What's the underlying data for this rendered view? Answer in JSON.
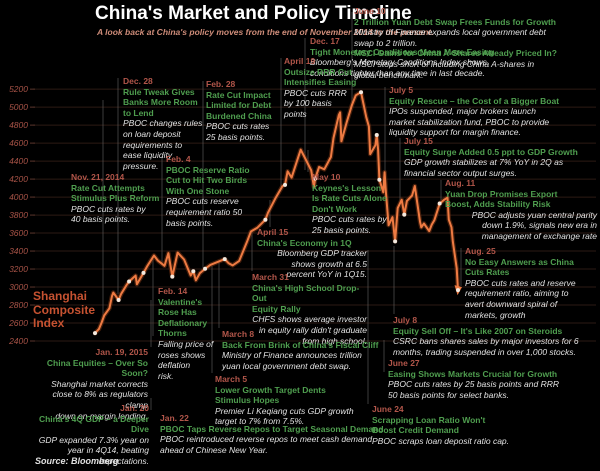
{
  "title": "China's Market and Policy Timeline",
  "subtitle": "A look back at China's policy moves from the end of November 2014 to the present.",
  "source": "Source: Bloomberg",
  "series_label": "Shanghai\nComposite\nIndex",
  "colors": {
    "background": "#000000",
    "line": "#ee7b43",
    "marker": "#f2e9df",
    "date_text": "#b2564a",
    "headline_text": "#4f9e4f",
    "body_text": "#e2e2e2",
    "subtitle_text": "#cf8d7a",
    "axis_label": "#a85347",
    "gridline": "#2c1a13",
    "connector": "#6b6b6b",
    "series_label_text": "#c65231"
  },
  "chart_data": {
    "type": "line",
    "title": "Shanghai Composite Index",
    "xlabel": "",
    "ylabel": "",
    "ylim": [
      2400,
      5200
    ],
    "y_ticks": [
      5200,
      5000,
      4800,
      4600,
      4400,
      4200,
      4000,
      3800,
      3600,
      3400,
      3200,
      3000,
      2800,
      2600,
      2400
    ],
    "x_range": [
      "2014-11-21",
      "2015-08-25"
    ],
    "grid": "horizontal",
    "legend_position": "none",
    "points": [
      [
        "2014-11-21",
        2487
      ],
      [
        "2014-11-24",
        2532
      ],
      [
        "2014-11-26",
        2604
      ],
      [
        "2014-11-28",
        2683
      ],
      [
        "2014-12-02",
        2763
      ],
      [
        "2014-12-04",
        2899
      ],
      [
        "2014-12-05",
        2938
      ],
      [
        "2014-12-09",
        2856
      ],
      [
        "2014-12-11",
        2925
      ],
      [
        "2014-12-15",
        3021
      ],
      [
        "2014-12-17",
        3061
      ],
      [
        "2014-12-22",
        3127
      ],
      [
        "2014-12-23",
        3032
      ],
      [
        "2014-12-28",
        3157
      ],
      [
        "2014-12-31",
        3235
      ],
      [
        "2015-01-05",
        3351
      ],
      [
        "2015-01-08",
        3294
      ],
      [
        "2015-01-13",
        3236
      ],
      [
        "2015-01-16",
        3376
      ],
      [
        "2015-01-19",
        3116
      ],
      [
        "2015-01-23",
        3383
      ],
      [
        "2015-01-28",
        3306
      ],
      [
        "2015-02-02",
        3128
      ],
      [
        "2015-02-04",
        3175
      ],
      [
        "2015-02-06",
        3075
      ],
      [
        "2015-02-09",
        3153
      ],
      [
        "2015-02-13",
        3203
      ],
      [
        "2015-02-17",
        3246
      ],
      [
        "2015-02-28",
        3310
      ],
      [
        "2015-03-03",
        3264
      ],
      [
        "2015-03-06",
        3241
      ],
      [
        "2015-03-11",
        3291
      ],
      [
        "2015-03-17",
        3503
      ],
      [
        "2015-03-20",
        3617
      ],
      [
        "2015-03-25",
        3661
      ],
      [
        "2015-03-31",
        3748
      ],
      [
        "2015-04-02",
        3826
      ],
      [
        "2015-04-08",
        3994
      ],
      [
        "2015-04-13",
        4121
      ],
      [
        "2015-04-15",
        4136
      ],
      [
        "2015-04-17",
        4287
      ],
      [
        "2015-04-20",
        4217
      ],
      [
        "2015-04-24",
        4394
      ],
      [
        "2015-04-27",
        4527
      ],
      [
        "2015-04-30",
        4441
      ],
      [
        "2015-05-05",
        4298
      ],
      [
        "2015-05-07",
        4112
      ],
      [
        "2015-05-08",
        4206
      ],
      [
        "2015-05-11",
        4334
      ],
      [
        "2015-05-15",
        4309
      ],
      [
        "2015-05-20",
        4446
      ],
      [
        "2015-05-22",
        4657
      ],
      [
        "2015-05-26",
        4910
      ],
      [
        "2015-05-27",
        4941
      ],
      [
        "2015-05-28",
        4620
      ],
      [
        "2015-06-01",
        4828
      ],
      [
        "2015-06-05",
        5023
      ],
      [
        "2015-06-08",
        5132
      ],
      [
        "2015-06-12",
        5166
      ],
      [
        "2015-06-16",
        4887
      ],
      [
        "2015-06-18",
        4785
      ],
      [
        "2015-06-19",
        4478
      ],
      [
        "2015-06-23",
        4576
      ],
      [
        "2015-06-24",
        4690
      ],
      [
        "2015-06-25",
        4527
      ],
      [
        "2015-06-26",
        4193
      ],
      [
        "2015-06-29",
        4053
      ],
      [
        "2015-06-30",
        4277
      ],
      [
        "2015-07-01",
        4054
      ],
      [
        "2015-07-03",
        3687
      ],
      [
        "2015-07-06",
        3776
      ],
      [
        "2015-07-08",
        3507
      ],
      [
        "2015-07-10",
        3877
      ],
      [
        "2015-07-13",
        3970
      ],
      [
        "2015-07-15",
        3805
      ],
      [
        "2015-07-17",
        3957
      ],
      [
        "2015-07-21",
        4018
      ],
      [
        "2015-07-23",
        4123
      ],
      [
        "2015-07-27",
        3726
      ],
      [
        "2015-07-28",
        3663
      ],
      [
        "2015-07-30",
        3706
      ],
      [
        "2015-08-03",
        3622
      ],
      [
        "2015-08-05",
        3695
      ],
      [
        "2015-08-07",
        3744
      ],
      [
        "2015-08-11",
        3928
      ],
      [
        "2015-08-14",
        3965
      ],
      [
        "2015-08-17",
        3994
      ],
      [
        "2015-08-18",
        3748
      ],
      [
        "2015-08-20",
        3664
      ],
      [
        "2015-08-21",
        3508
      ],
      [
        "2015-08-24",
        3210
      ],
      [
        "2015-08-25",
        2965
      ]
    ],
    "marker_dates": [
      "2014-11-21",
      "2014-12-09",
      "2014-12-17",
      "2014-12-28",
      "2015-01-19",
      "2015-02-04",
      "2015-02-13",
      "2015-02-28",
      "2015-03-31",
      "2015-04-15",
      "2015-05-08",
      "2015-06-12",
      "2015-06-24",
      "2015-06-26",
      "2015-07-08",
      "2015-07-15",
      "2015-08-11",
      "2015-08-25"
    ]
  },
  "annotations": [
    {
      "id": "nov21",
      "date": "Nov. 21, 2014",
      "head": "Rate Cut Attempts\nStimulus Plus Reform",
      "body": "PBOC cuts rates by\n40 basis points."
    },
    {
      "id": "dec28",
      "date": "Dec. 28",
      "head": "Rule Tweak Gives\nBanks More Room\nto Lend",
      "body": "PBOC changes rules\non loan deposit\nrequirements to\nease liquidity\npressure."
    },
    {
      "id": "feb4",
      "date": "Feb. 4",
      "head": "PBOC Reserve Ratio\nCut to Hit Two Birds\nWith One Stone",
      "body": "PBOC cuts reserve\nrequirement ratio 50\nbasis points."
    },
    {
      "id": "feb28",
      "date": "Feb. 28",
      "head": "Rate Cut Impact\nLimited for Debt\nBurdened China",
      "body": "PBOC cuts rates\n25 basis points."
    },
    {
      "id": "dec17",
      "date": "Dec. 17",
      "head": "Tight Monetary Conditions Mean More Easing",
      "body": "Bloomberg's Monetary Conditions Index shows\nconditions tighter than any time in last decade."
    },
    {
      "id": "apr19",
      "date": "April 19",
      "head": "Outsize RRR Cut\nIntensifies Easing",
      "body": "PBOC cuts RRR\nby 100 basis\npoints"
    },
    {
      "id": "jun10",
      "date": "June 10",
      "head": "2 Trillion Yuan Debt Swap Frees Funds for Growth",
      "body": "Ministry of Finance expands local government debt\nswap to 2 trillion.",
      "head2": "MSCI Gains for China A-Shares Already Priced In?",
      "body2": "MSCI stops short of including China A-shares in\nglobal benchmark."
    },
    {
      "id": "jul5",
      "date": "July 5",
      "head": "Equity Rescue – the Cost of a Bigger Boat",
      "body": "IPOs suspended, major brokers launch\nmarket stabilization fund, PBOC to provide\nliquidity support for margin finance."
    },
    {
      "id": "jul15",
      "date": "July 15",
      "head": "Equity Surge Added 0.5 ppt to GDP Growth",
      "body": "GDP growth stabilizes at 7% YoY in 2Q as\nfinancial sector output surges."
    },
    {
      "id": "aug11",
      "date": "Aug. 11",
      "head": "Yuan Drop Promises Export\nBoost, Adds Stability Risk",
      "body": "PBOC adjusts yuan central parity\ndown 1.9%, signals new era in\nmanagement of exchange rate"
    },
    {
      "id": "aug25",
      "date": "Aug. 25",
      "head": "No Easy Answers as China\nCuts Rates",
      "body": "PBOC cuts rates and reserve\nrequirement ratio, aiming to\navert downward spiral of\nmarkets, growth"
    },
    {
      "id": "jul8",
      "date": "July 8",
      "head": "Equity Sell Off – It's Like 2007 on Steroids",
      "body": "CSRC bans shares sales by major investors for 6\nmonths, trading suspended in over 1,000 stocks."
    },
    {
      "id": "jun27",
      "date": "June 27",
      "head": "Easing Shows Markets Crucial for Growth",
      "body": "PBOC cuts rates by 25 basis points and RRR\n50 basis points for select banks."
    },
    {
      "id": "jun24",
      "date": "June 24",
      "head": "Scrapping Loan Ratio Won't\nBoost Credit Demand",
      "body": "PBOC scraps loan deposit ratio cap."
    },
    {
      "id": "may10",
      "date": "May 10",
      "head": "Keynes's Lesson\nIs Rate Cuts Alone\nDon't Work",
      "body": "PBOC cuts rates by\n25 basis points."
    },
    {
      "id": "apr15",
      "date": "April 15",
      "head": "China's Economy in 1Q",
      "body": "Bloomberg GDP tracker\nshows growth at 6.5\npercent YoY in 1Q15."
    },
    {
      "id": "mar31",
      "date": "March 31",
      "head": "China's High School Drop-Out\nEquity Rally",
      "body": "CHFS shows average investor\nin equity rally didn't graduate\nfrom high school."
    },
    {
      "id": "mar8",
      "date": "March 8",
      "head": "Back From Brink of China's Fiscal Cliff",
      "body": "Ministry of Finance announces trillion\nyuan local government debt swap."
    },
    {
      "id": "mar5",
      "date": "March 5",
      "head": "Lower Growth Target Dents\nStimulus Hopes",
      "body": "Premier Li Keqiang cuts GDP growth\ntarget to 7% from 7.5%."
    },
    {
      "id": "jan22",
      "date": "Jan. 22",
      "head": "PBOC Taps Reverse Repos to Target Seasonal Demand",
      "body": "PBOC reintroduced reverse repos to meet cash demand\nahead of Chinese New Year."
    },
    {
      "id": "jan19",
      "date": "Jan. 19, 2015",
      "head": "China Equities – Over So Soon?",
      "body": "Shanghai market corrects\nclose to 8% as regulators clamp\ndown on margin lending."
    },
    {
      "id": "jan20",
      "date": "Jan. 20",
      "head": "China's 4Q GDP – a Deeper Dive",
      "body": "GDP expanded 7.3% year on\nyear in 4Q14, beating\nexpectations."
    },
    {
      "id": "feb14",
      "date": "Feb. 14",
      "head": "Valentine's\nRose Has\nDeflationary\nThorns",
      "body": "Falling price of\nroses shows\ndeflation\nrisk."
    }
  ]
}
